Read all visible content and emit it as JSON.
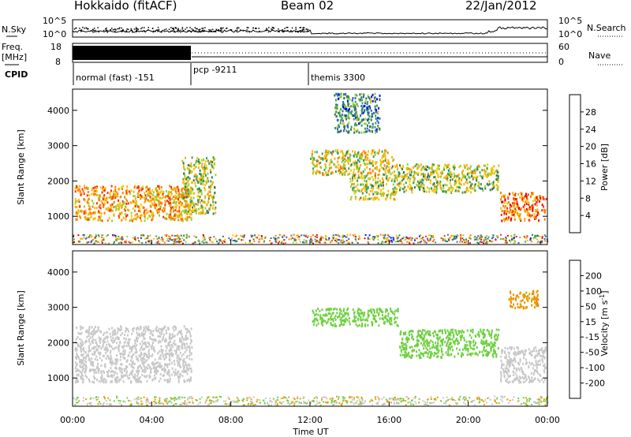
{
  "header": {
    "station": "Hokkaido (fitACF)",
    "beam": "Beam 02",
    "date": "22/Jan/2012"
  },
  "noise_panel": {
    "left_label": "N.Sky",
    "left_ticks": [
      "10^5",
      "10^0"
    ],
    "right_ticks": [
      "10^5",
      "10^0"
    ],
    "right_label": "N.Search"
  },
  "freq_panel": {
    "left_label_1": "Freq.",
    "left_label_2": "[MHz]",
    "left_ticks": [
      "18",
      "8"
    ],
    "right_ticks": [
      "60",
      "0"
    ],
    "right_label": "Nave"
  },
  "cpid_panel": {
    "label": "CPID",
    "segments": [
      {
        "name": "normal (fast) -151",
        "start_hour": 0
      },
      {
        "name": "pcp -9211",
        "start_hour": 6
      },
      {
        "name": "themis 3300",
        "start_hour": 12
      }
    ]
  },
  "axes": {
    "xlabel": "Time UT",
    "xticks": [
      "00:00",
      "04:00",
      "08:00",
      "12:00",
      "16:00",
      "20:00",
      "00:00"
    ],
    "ylabel": "Slant Range [km]",
    "yticks": [
      "4000",
      "3000",
      "2000",
      "1000"
    ]
  },
  "power_colorbar": {
    "label": "Power [dB]",
    "ticks": [
      "28",
      "24",
      "20",
      "16",
      "12",
      "8",
      "4"
    ],
    "colors": [
      "#e60000",
      "#ff3300",
      "#ff7a00",
      "#ffaa00",
      "#f0c800",
      "#9ccc3a",
      "#3e9e4e",
      "#2e7a5c",
      "#3060c0",
      "#0010ff"
    ]
  },
  "velocity_colorbar": {
    "label": "Velocity [m s^-1]",
    "ticks": [
      "200",
      "100",
      "50",
      "15",
      "-15",
      "-50",
      "-100",
      "-200"
    ],
    "colors": [
      "#1a2ecc",
      "#2a8a60",
      "#3aa54a",
      "#6ed040",
      "#c8c8c8",
      "#e0a000",
      "#ff8000",
      "#ff4000",
      "#e00000"
    ]
  },
  "chart_data": {
    "type": "heatmap",
    "title": "Hokkaido (fitACF)",
    "xlabel": "Time UT",
    "ylabel": "Slant Range [km]",
    "xlim": [
      0,
      24
    ],
    "ylim": [
      200,
      4600
    ],
    "power_range_dB": [
      0,
      30
    ],
    "velocity_range_ms": [
      -200,
      200
    ],
    "power_regions": [
      {
        "t": [
          0.1,
          6.0
        ],
        "r": [
          900,
          1900
        ],
        "power": 20
      },
      {
        "t": [
          5.5,
          7.2
        ],
        "r": [
          1100,
          2700
        ],
        "power": 14
      },
      {
        "t": [
          12.0,
          16.2
        ],
        "r": [
          2200,
          2900
        ],
        "power": 16
      },
      {
        "t": [
          14.0,
          16.3
        ],
        "r": [
          1500,
          2200
        ],
        "power": 14
      },
      {
        "t": [
          16.2,
          21.5
        ],
        "r": [
          1700,
          2500
        ],
        "power": 14
      },
      {
        "t": [
          21.6,
          23.9
        ],
        "r": [
          900,
          1700
        ],
        "power": 24
      },
      {
        "t": [
          13.2,
          15.5
        ],
        "r": [
          3400,
          4500
        ],
        "power": 8
      }
    ],
    "velocity_regions": [
      {
        "t": [
          0.1,
          6.0
        ],
        "r": [
          900,
          2500
        ],
        "velocity": 0
      },
      {
        "t": [
          12.0,
          16.5
        ],
        "r": [
          2500,
          3000
        ],
        "velocity": 50
      },
      {
        "t": [
          16.5,
          21.5
        ],
        "r": [
          1600,
          2400
        ],
        "velocity": 40
      },
      {
        "t": [
          21.6,
          23.9
        ],
        "r": [
          900,
          1900
        ],
        "velocity": 0
      },
      {
        "t": [
          22.0,
          23.5
        ],
        "r": [
          3000,
          3500
        ],
        "velocity": -70
      }
    ]
  }
}
